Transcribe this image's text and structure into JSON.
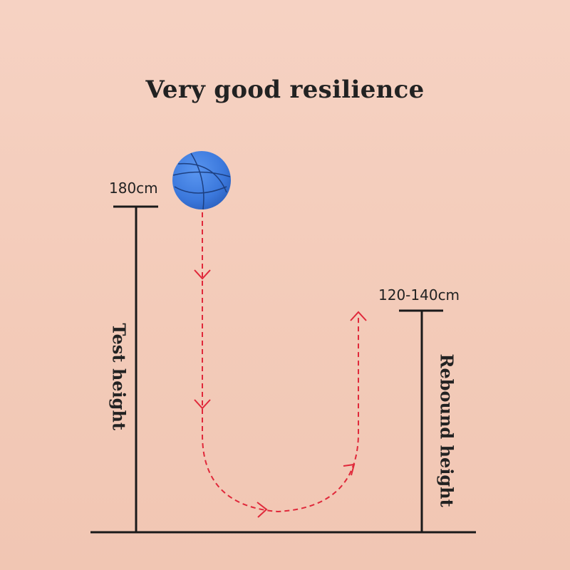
{
  "title": "Very good resilience",
  "test_height": {
    "value_label": "180cm",
    "axis_label": "Test height"
  },
  "rebound_height": {
    "value_label": "120-140cm",
    "axis_label": "Rebound height"
  },
  "colors": {
    "path": "#e0283a",
    "ball": "#3d7ee0",
    "line": "#1a1a1a"
  },
  "icons": {
    "ball": "basketball-icon"
  }
}
